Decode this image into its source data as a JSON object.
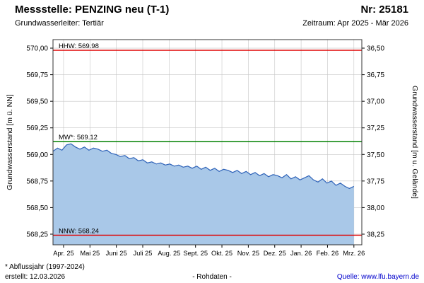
{
  "header": {
    "title": "Messstelle: PENZING neu (T-1)",
    "station_number": "Nr: 25181",
    "aquifer": "Grundwasserleiter: Tertiär",
    "period": "Zeitraum: Apr 2025 - Mär 2026"
  },
  "chart_data": {
    "type": "area",
    "title": "",
    "ylabel_left": "Grundwasserstand [m ü. NN]",
    "ylabel_right": "Grundwasserstand [m u. Gelände]",
    "x_ticks": [
      "Apr. 25",
      "Mai 25",
      "Juni 25",
      "Juli 25",
      "Aug. 25",
      "Sept. 25",
      "Okt. 25",
      "Nov. 25",
      "Dez. 25",
      "Jan. 26",
      "Feb. 26",
      "Mrz. 26"
    ],
    "x_range": [
      -0.4,
      11.3
    ],
    "ylim": [
      568.15,
      570.08
    ],
    "grid": true,
    "y_ticks": [
      {
        "value": 570.0,
        "left": "570,00",
        "right": "36,50"
      },
      {
        "value": 569.75,
        "left": "569,75",
        "right": "36,75"
      },
      {
        "value": 569.5,
        "left": "569,50",
        "right": "37,00"
      },
      {
        "value": 569.25,
        "left": "569,25",
        "right": "37,25"
      },
      {
        "value": 569.0,
        "left": "569,00",
        "right": "37,50"
      },
      {
        "value": 568.75,
        "left": "568,75",
        "right": "37,75"
      },
      {
        "value": 568.5,
        "left": "568,50",
        "right": "38,00"
      },
      {
        "value": 568.25,
        "left": "568,25",
        "right": "38,25"
      }
    ],
    "reference_lines": [
      {
        "name": "hhw",
        "label": "HHW: 569.98",
        "value": 569.98,
        "color": "#e00000"
      },
      {
        "name": "mw",
        "label": "MW*: 569.12",
        "value": 569.12,
        "color": "#008000"
      },
      {
        "name": "nnw",
        "label": "NNW: 568.24",
        "value": 568.24,
        "color": "#e00000"
      }
    ],
    "series": [
      {
        "name": "Grundwasserstand Rohdaten",
        "x_range": [
          -0.4,
          11.0
        ],
        "values": [
          569.03,
          569.06,
          569.04,
          569.09,
          569.1,
          569.07,
          569.05,
          569.07,
          569.04,
          569.06,
          569.05,
          569.03,
          569.04,
          569.01,
          569.0,
          568.98,
          568.99,
          568.96,
          568.97,
          568.94,
          568.95,
          568.92,
          568.93,
          568.91,
          568.92,
          568.9,
          568.91,
          568.89,
          568.9,
          568.88,
          568.89,
          568.87,
          568.89,
          568.86,
          568.88,
          568.85,
          568.87,
          568.84,
          568.86,
          568.85,
          568.83,
          568.85,
          568.82,
          568.84,
          568.81,
          568.83,
          568.8,
          568.82,
          568.79,
          568.81,
          568.8,
          568.78,
          568.81,
          568.77,
          568.79,
          568.76,
          568.78,
          568.8,
          568.76,
          568.74,
          568.77,
          568.73,
          568.75,
          568.71,
          568.73,
          568.7,
          568.68,
          568.7
        ]
      }
    ],
    "colors": {
      "line": "#2e62b8",
      "fill": "#a9c8e8",
      "grid": "#c6c6c6",
      "frame": "#333333",
      "tick_text": "#000000"
    }
  },
  "footer": {
    "note": "* Abflussjahr (1997-2024)",
    "created": "erstellt:  12.03.2026",
    "center": "- Rohdaten -",
    "source": "Quelle: www.lfu.bayern.de"
  }
}
